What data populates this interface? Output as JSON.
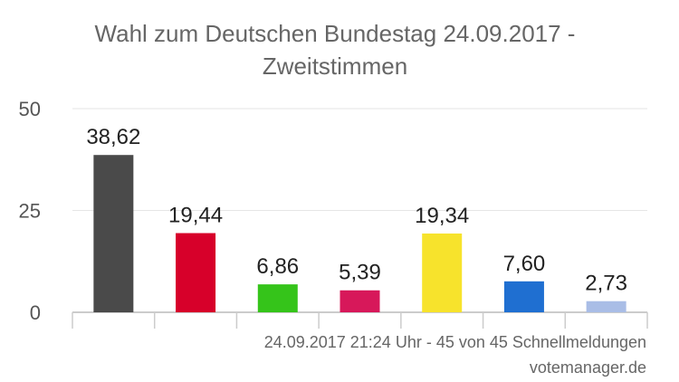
{
  "chart_data": {
    "type": "bar",
    "title_line1": "Wahl zum Deutschen Bundestag 24.09.2017 -",
    "title_line2": "Zweitstimmen",
    "ylim": [
      0,
      50
    ],
    "yticks": [
      "0",
      "25",
      "50"
    ],
    "values": [
      38.62,
      19.44,
      6.86,
      5.39,
      19.34,
      7.6,
      2.73
    ],
    "value_labels": [
      "38,62",
      "19,44",
      "6,86",
      "5,39",
      "19,34",
      "7,60",
      "2,73"
    ],
    "colors": [
      "#4a4a4a",
      "#d7002a",
      "#35c41a",
      "#d7185a",
      "#f7e32c",
      "#1f6fd1",
      "#a9bde6"
    ],
    "grid": true
  },
  "footer": {
    "timestamp": "24.09.2017 21:24 Uhr - 45 von 45 Schnellmeldungen",
    "source": "votemanager.de"
  }
}
